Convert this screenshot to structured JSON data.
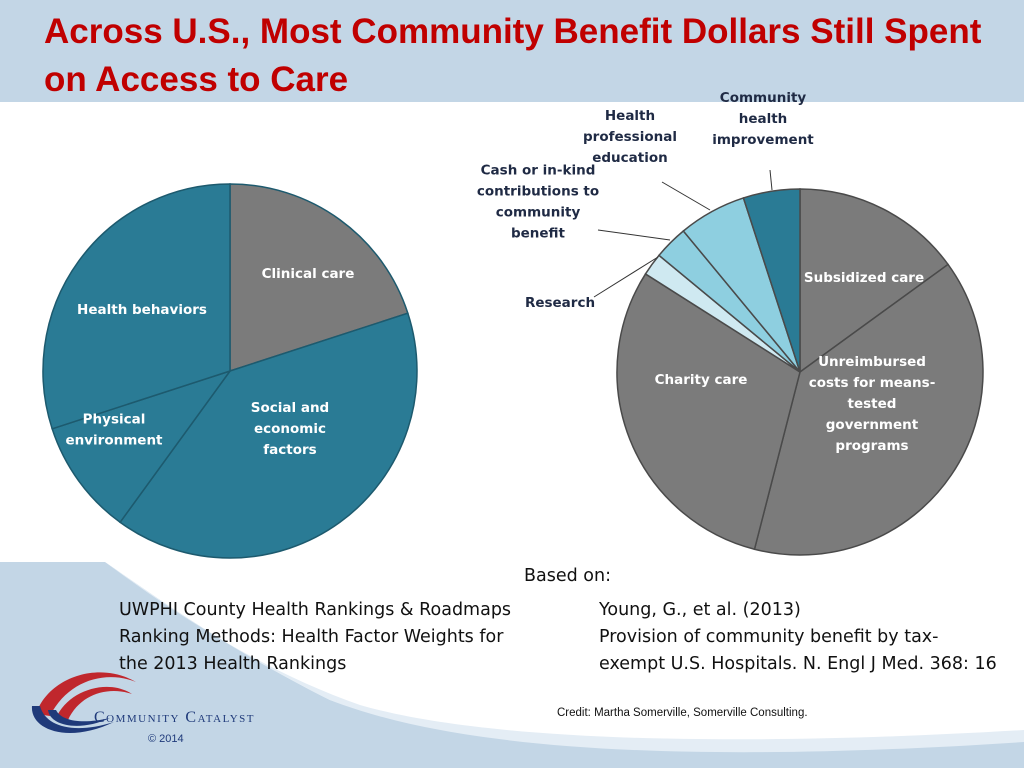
{
  "slide": {
    "title": "Across U.S., Most Community Benefit Dollars Still Spent on Access to Care",
    "based_on": "Based on:",
    "ref_left": [
      "UWPHI County Health Rankings & Roadmaps",
      "Ranking Methods: Health Factor Weights for",
      "the 2013 Health Rankings"
    ],
    "ref_right": [
      "Young, G., et al. (2013)",
      "Provision of community benefit by tax-",
      "exempt U.S. Hospitals. N. Engl J Med. 368: 16"
    ],
    "credit": "Credit: Martha Somerville, Somerville Consulting.",
    "logo_text": "Community Catalyst",
    "copyright": "© 2014",
    "colors": {
      "title": "#c00000",
      "teal": "#2a7b95",
      "gray": "#7b7b7b",
      "light_blue": "#8ecfe0",
      "pale_blue": "#cfe9f1",
      "band": "#c3d6e6"
    }
  },
  "chart_data": [
    {
      "type": "pie",
      "title": "",
      "start": "top, clockwise",
      "labels": [
        "Clinical care",
        "Social and economic factors",
        "Physical environment",
        "Health behaviors"
      ],
      "values": [
        20,
        40,
        10,
        30
      ],
      "colors": [
        "#7b7b7b",
        "#2a7b95",
        "#2a7b95",
        "#2a7b95"
      ],
      "label_colors": [
        "#ffffff",
        "#ffffff",
        "#ffffff",
        "#ffffff"
      ],
      "label_lines": [
        [
          "Clinical care"
        ],
        [
          "Social and",
          "economic",
          "factors"
        ],
        [
          "Physical",
          "environment"
        ],
        [
          "Health behaviors"
        ]
      ]
    },
    {
      "type": "pie",
      "title": "",
      "start": "top, clockwise",
      "labels": [
        "Subsidized care",
        "Unreimbursed costs for means-tested government programs",
        "Charity care",
        "Research",
        "Cash or in-kind contributions to community benefit",
        "Health professional education",
        "Community health improvement"
      ],
      "values": [
        15,
        39,
        30,
        2,
        3,
        6,
        5
      ],
      "colors": [
        "#7b7b7b",
        "#7b7b7b",
        "#7b7b7b",
        "#cfe9f1",
        "#8ecfe0",
        "#8ecfe0",
        "#2a7b95"
      ],
      "label_colors": [
        "#ffffff",
        "#ffffff",
        "#ffffff",
        "#1f2a44",
        "#1f2a44",
        "#1f2a44",
        "#1f2a44"
      ],
      "label_lines": [
        [
          "Subsidized care"
        ],
        [
          "Unreimbursed",
          "costs for means-",
          "tested",
          "government",
          "programs"
        ],
        [
          "Charity care"
        ],
        [
          "Research"
        ],
        [
          "Cash or in-kind",
          "contributions to",
          "community",
          "benefit"
        ],
        [
          "Health",
          "professional",
          "education"
        ],
        [
          "Community",
          "health",
          "improvement"
        ]
      ]
    }
  ]
}
